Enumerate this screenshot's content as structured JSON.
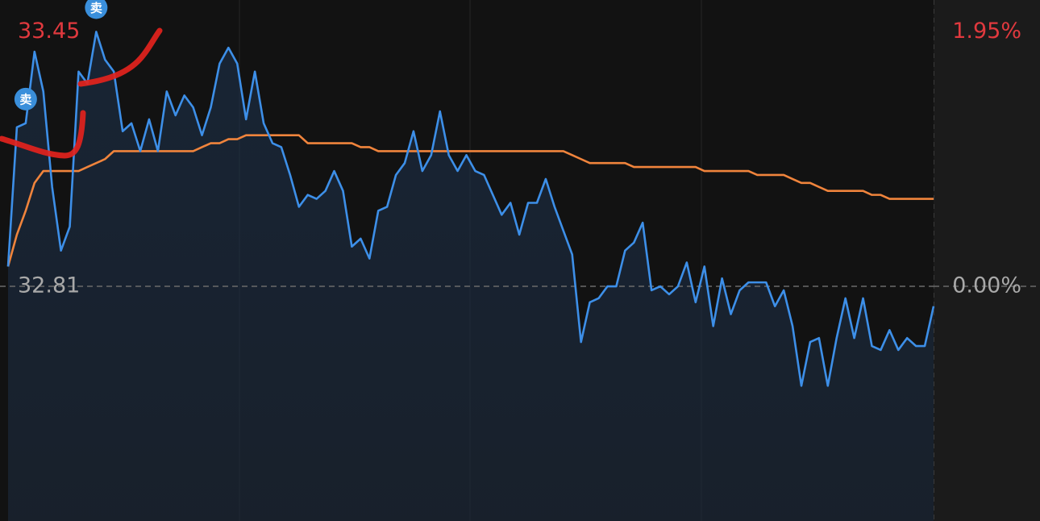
{
  "chart_data": {
    "type": "line",
    "ylim": [
      32.22,
      33.53
    ],
    "yticks": [
      33.45,
      32.81
    ],
    "y2lim": [
      -1.798,
      2.194
    ],
    "y2ticks": [
      {
        "value": 1.95,
        "label": "1.95%"
      },
      {
        "value": 0,
        "label": "0.00%"
      }
    ],
    "up_color": "#e0393e",
    "flat_color": "#a9a9a9",
    "series": [
      {
        "color": "#3d8fe8",
        "values": [
          32.86,
          33.21,
          33.22,
          33.4,
          33.3,
          33.06,
          32.9,
          32.96,
          33.35,
          33.32,
          33.45,
          33.38,
          33.35,
          33.2,
          33.22,
          33.15,
          33.23,
          33.15,
          33.3,
          33.24,
          33.29,
          33.26,
          33.19,
          33.26,
          33.37,
          33.41,
          33.37,
          33.23,
          33.35,
          33.22,
          33.17,
          33.16,
          33.09,
          33.01,
          33.04,
          33.03,
          33.05,
          33.1,
          33.05,
          32.91,
          32.93,
          32.88,
          33.0,
          33.01,
          33.09,
          33.12,
          33.2,
          33.1,
          33.14,
          33.25,
          33.14,
          33.1,
          33.14,
          33.1,
          33.09,
          33.04,
          32.99,
          33.02,
          32.94,
          33.02,
          33.02,
          33.08,
          33.01,
          32.95,
          32.89,
          32.67,
          32.77,
          32.78,
          32.81,
          32.81,
          32.9,
          32.92,
          32.97,
          32.8,
          32.81,
          32.79,
          32.81,
          32.87,
          32.77,
          32.86,
          32.71,
          32.83,
          32.74,
          32.8,
          32.82,
          32.82,
          32.82,
          32.76,
          32.8,
          32.71,
          32.56,
          32.67,
          32.68,
          32.56,
          32.68,
          32.78,
          32.68,
          32.78,
          32.66,
          32.65,
          32.7,
          32.65,
          32.68,
          32.66,
          32.66,
          32.76
        ]
      },
      {
        "color": "#f0843c",
        "values": [
          32.86,
          32.94,
          33.0,
          33.07,
          33.1,
          33.1,
          33.1,
          33.1,
          33.1,
          33.11,
          33.12,
          33.13,
          33.15,
          33.15,
          33.15,
          33.15,
          33.15,
          33.15,
          33.15,
          33.15,
          33.15,
          33.15,
          33.16,
          33.17,
          33.17,
          33.18,
          33.18,
          33.19,
          33.19,
          33.19,
          33.19,
          33.19,
          33.19,
          33.19,
          33.17,
          33.17,
          33.17,
          33.17,
          33.17,
          33.17,
          33.16,
          33.16,
          33.15,
          33.15,
          33.15,
          33.15,
          33.15,
          33.15,
          33.15,
          33.15,
          33.15,
          33.15,
          33.15,
          33.15,
          33.15,
          33.15,
          33.15,
          33.15,
          33.15,
          33.15,
          33.15,
          33.15,
          33.15,
          33.15,
          33.14,
          33.13,
          33.12,
          33.12,
          33.12,
          33.12,
          33.12,
          33.11,
          33.11,
          33.11,
          33.11,
          33.11,
          33.11,
          33.11,
          33.11,
          33.1,
          33.1,
          33.1,
          33.1,
          33.1,
          33.1,
          33.09,
          33.09,
          33.09,
          33.09,
          33.08,
          33.07,
          33.07,
          33.06,
          33.05,
          33.05,
          33.05,
          33.05,
          33.05,
          33.04,
          33.04,
          33.03,
          33.03,
          33.03,
          33.03,
          33.03,
          33.03
        ]
      }
    ],
    "annotations": [
      {
        "text": "卖",
        "point": 2
      },
      {
        "text": "卖",
        "point": 10
      }
    ]
  }
}
